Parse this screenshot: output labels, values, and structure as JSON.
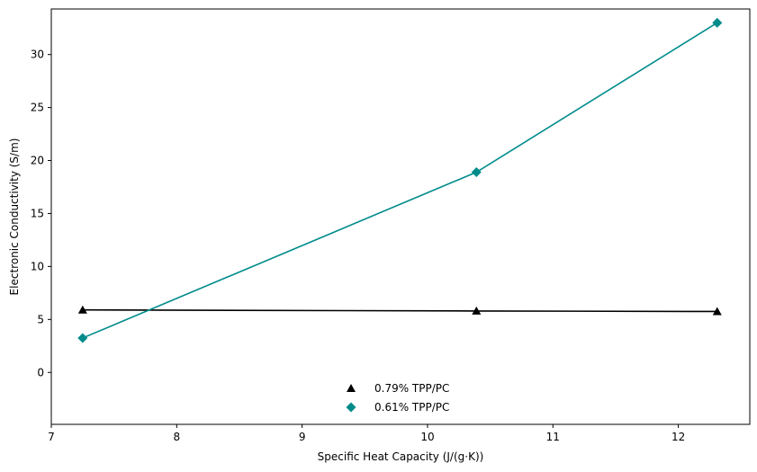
{
  "chart_data": {
    "type": "line",
    "title": "",
    "xlabel": "Specific Heat Capacity (J/(g·K))",
    "ylabel": "Electronic Conductivity (S/m)",
    "xlim": [
      7.0,
      12.57
    ],
    "ylim": [
      -4.9,
      34.3
    ],
    "xticks": [
      7,
      8,
      9,
      10,
      11,
      12
    ],
    "yticks": [
      0,
      5,
      10,
      15,
      20,
      25,
      30
    ],
    "grid": false,
    "legend_position": "bottom-center",
    "series": [
      {
        "name": "0.79% TPP/PC",
        "color": "#000000",
        "marker": "triangle",
        "x": [
          7.25,
          10.39,
          12.31
        ],
        "y": [
          5.9,
          5.8,
          5.75
        ]
      },
      {
        "name": "0.61% TPP/PC",
        "color": "#008b8b",
        "marker": "diamond",
        "x": [
          7.25,
          10.39,
          12.31
        ],
        "y": [
          3.25,
          18.9,
          33.0
        ]
      }
    ]
  }
}
